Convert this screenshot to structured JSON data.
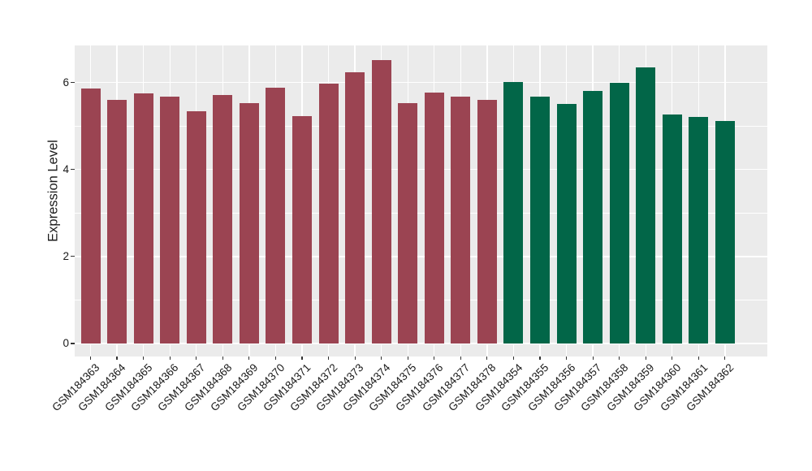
{
  "figure": {
    "background": "#FFFFFF",
    "panel_background": "#EBEBEB",
    "grid_color": "#FFFFFF",
    "axis_text_color": "#1A1A1A",
    "tick_color": "#333333"
  },
  "chart_data": {
    "type": "bar",
    "title": "",
    "xlabel": "",
    "ylabel": "Expression Level",
    "ylim": [
      0,
      6.9
    ],
    "yticks": [
      0,
      2,
      4,
      6
    ],
    "ytick_labels": [
      "0",
      "2",
      "4",
      "6"
    ],
    "minor_gridlines": [
      1,
      3,
      5
    ],
    "grid": true,
    "legend": "none",
    "x_label_rotation_deg": 45,
    "bar_groups": [
      {
        "color": "#9B4452",
        "labels": [
          "GSM184363",
          "GSM184364",
          "GSM184365",
          "GSM184366",
          "GSM184367",
          "GSM184368",
          "GSM184369",
          "GSM184370",
          "GSM184371",
          "GSM184372",
          "GSM184373",
          "GSM184374",
          "GSM184375",
          "GSM184376",
          "GSM184377",
          "GSM184378"
        ],
        "values": [
          5.86,
          5.59,
          5.74,
          5.68,
          5.34,
          5.71,
          5.52,
          5.88,
          5.22,
          5.97,
          6.23,
          6.52,
          5.52,
          5.76,
          5.68,
          5.6
        ]
      },
      {
        "color": "#026648",
        "labels": [
          "GSM184354",
          "GSM184355",
          "GSM184356",
          "GSM184357",
          "GSM184358",
          "GSM184359",
          "GSM184360",
          "GSM184361",
          "GSM184362"
        ],
        "values": [
          6.0,
          5.68,
          5.5,
          5.8,
          5.98,
          6.35,
          5.27,
          5.2,
          5.12
        ]
      }
    ]
  }
}
